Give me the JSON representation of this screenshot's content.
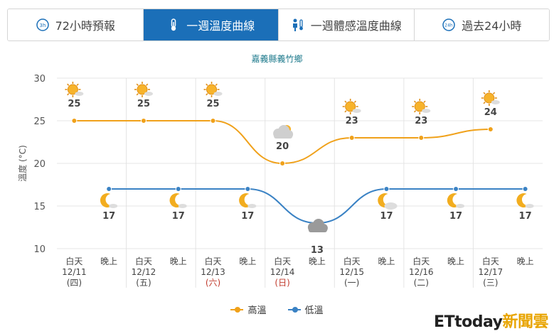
{
  "tabs": [
    {
      "label": "72小時預報",
      "icon": "clock-3h-icon",
      "active": false
    },
    {
      "label": "一週溫度曲線",
      "icon": "thermometer-icon",
      "active": true
    },
    {
      "label": "一週體感溫度曲線",
      "icon": "person-thermometer-icon",
      "active": false
    },
    {
      "label": "過去24小時",
      "icon": "clock-24h-icon",
      "active": false
    }
  ],
  "station": "嘉義縣義竹鄉",
  "colors": {
    "high": "#f0a11a",
    "low": "#3a82c4",
    "grid": "#e4e4e4",
    "sunday": "#c0392b",
    "accent": "#1b6fb8"
  },
  "chart_data": {
    "type": "line",
    "ylabel": "溫度 (°C)",
    "ylim": [
      10,
      30
    ],
    "yticks": [
      10,
      15,
      20,
      25,
      30
    ],
    "periods": [
      {
        "label": "白天",
        "date": "12/11",
        "weekday": "(四)"
      },
      {
        "label": "晚上"
      },
      {
        "label": "白天",
        "date": "12/12",
        "weekday": "(五)"
      },
      {
        "label": "晚上"
      },
      {
        "label": "白天",
        "date": "12/13",
        "weekday": "(六)",
        "weekend": true
      },
      {
        "label": "晚上"
      },
      {
        "label": "白天",
        "date": "12/14",
        "weekday": "(日)",
        "weekend": true
      },
      {
        "label": "晚上"
      },
      {
        "label": "白天",
        "date": "12/15",
        "weekday": "(一)"
      },
      {
        "label": "晚上"
      },
      {
        "label": "白天",
        "date": "12/16",
        "weekday": "(二)"
      },
      {
        "label": "晚上"
      },
      {
        "label": "白天",
        "date": "12/17",
        "weekday": "(三)"
      },
      {
        "label": "晚上"
      }
    ],
    "series": [
      {
        "name": "高溫",
        "points": [
          [
            0,
            25,
            "sunny"
          ],
          [
            2,
            25,
            "sunny"
          ],
          [
            4,
            25,
            "sunny"
          ],
          [
            6,
            20,
            "cloudy-sun"
          ],
          [
            8,
            23,
            "sunny"
          ],
          [
            10,
            23,
            "sunny"
          ],
          [
            12,
            24,
            "sunny"
          ]
        ]
      },
      {
        "name": "低溫",
        "points": [
          [
            1,
            17,
            "moon"
          ],
          [
            3,
            17,
            "moon"
          ],
          [
            5,
            17,
            "moon"
          ],
          [
            7,
            13,
            "cloudy"
          ],
          [
            9,
            17,
            "cloudy-moon"
          ],
          [
            11,
            17,
            "moon"
          ],
          [
            13,
            17,
            "moon"
          ]
        ]
      }
    ]
  },
  "watermark": {
    "main": "ETtoday",
    "sub": "新聞雲"
  }
}
